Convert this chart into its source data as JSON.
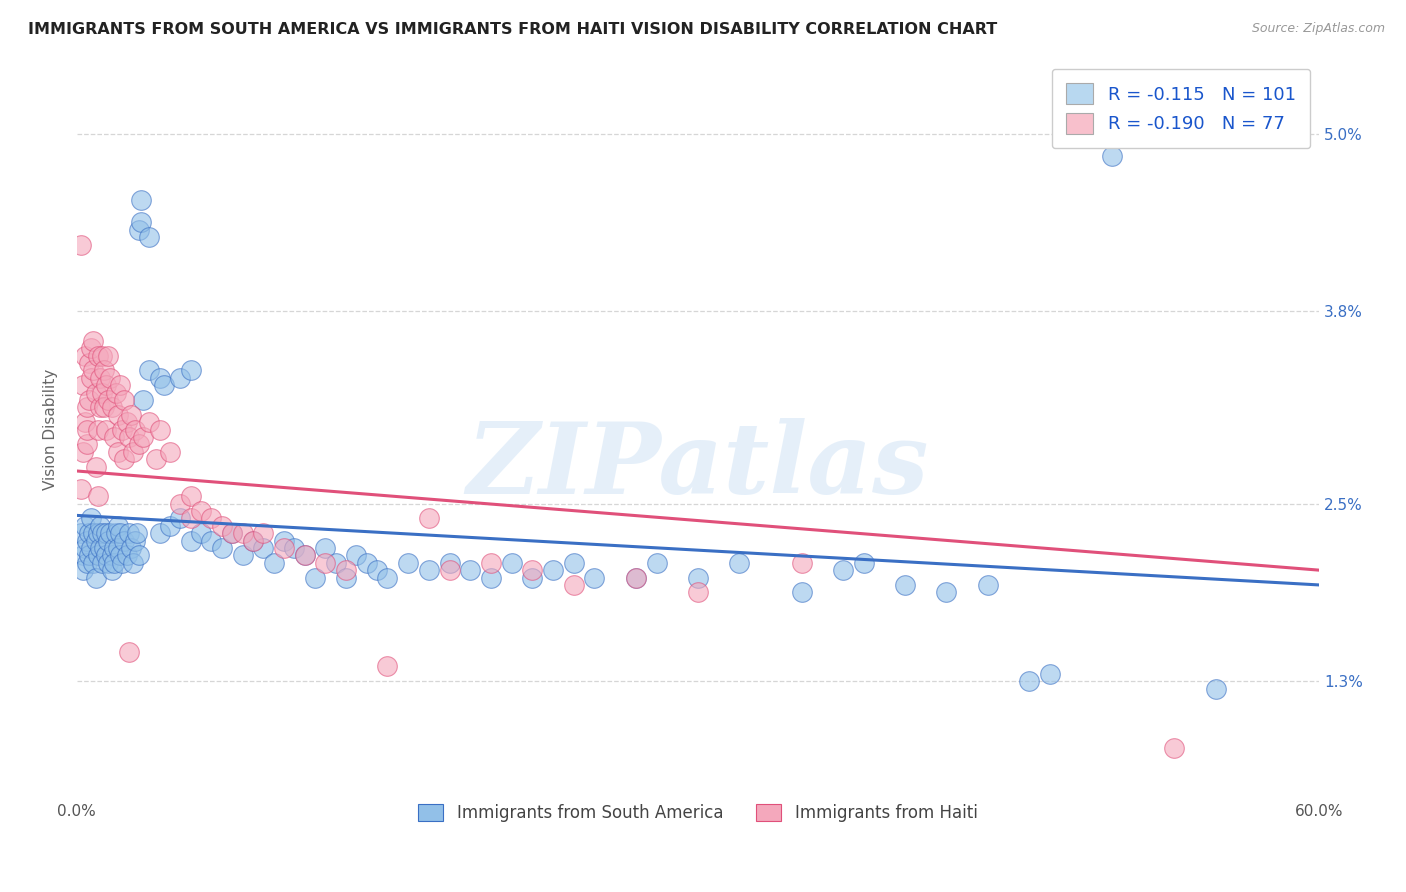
{
  "title": "IMMIGRANTS FROM SOUTH AMERICA VS IMMIGRANTS FROM HAITI VISION DISABILITY CORRELATION CHART",
  "source": "Source: ZipAtlas.com",
  "ylabel_label": "Vision Disability",
  "xlim": [
    0.0,
    60.0
  ],
  "ylim": [
    0.5,
    5.5
  ],
  "ytick_vals": [
    1.3,
    2.5,
    3.8,
    5.0
  ],
  "legend_bottom": [
    "Immigrants from South America",
    "Immigrants from Haiti"
  ],
  "color_blue": "#92c0e8",
  "color_pink": "#f4a8bc",
  "line_blue": "#3a6fc4",
  "line_pink": "#e0507a",
  "legend_blue_face": "#b8d8f0",
  "legend_pink_face": "#f8c0cc",
  "watermark": "ZIPatlas",
  "r_blue": -0.115,
  "n_blue": 101,
  "r_pink": -0.19,
  "n_pink": 77,
  "scatter_south_america": [
    [
      0.2,
      2.3
    ],
    [
      0.3,
      2.15
    ],
    [
      0.3,
      2.05
    ],
    [
      0.4,
      2.2
    ],
    [
      0.4,
      2.35
    ],
    [
      0.5,
      2.1
    ],
    [
      0.5,
      2.25
    ],
    [
      0.6,
      2.3
    ],
    [
      0.6,
      2.15
    ],
    [
      0.7,
      2.4
    ],
    [
      0.7,
      2.2
    ],
    [
      0.8,
      2.3
    ],
    [
      0.8,
      2.1
    ],
    [
      0.9,
      2.25
    ],
    [
      0.9,
      2.0
    ],
    [
      1.0,
      2.3
    ],
    [
      1.0,
      2.15
    ],
    [
      1.1,
      2.2
    ],
    [
      1.1,
      2.35
    ],
    [
      1.2,
      2.1
    ],
    [
      1.2,
      2.3
    ],
    [
      1.3,
      2.2
    ],
    [
      1.4,
      2.15
    ],
    [
      1.4,
      2.3
    ],
    [
      1.5,
      2.1
    ],
    [
      1.5,
      2.25
    ],
    [
      1.6,
      2.3
    ],
    [
      1.7,
      2.15
    ],
    [
      1.7,
      2.05
    ],
    [
      1.8,
      2.2
    ],
    [
      1.8,
      2.1
    ],
    [
      1.9,
      2.3
    ],
    [
      2.0,
      2.2
    ],
    [
      2.0,
      2.35
    ],
    [
      2.1,
      2.15
    ],
    [
      2.1,
      2.3
    ],
    [
      2.2,
      2.1
    ],
    [
      2.3,
      2.25
    ],
    [
      2.4,
      2.15
    ],
    [
      2.5,
      2.3
    ],
    [
      2.6,
      2.2
    ],
    [
      2.7,
      2.1
    ],
    [
      2.8,
      2.25
    ],
    [
      2.9,
      2.3
    ],
    [
      3.0,
      2.15
    ],
    [
      3.0,
      4.35
    ],
    [
      3.1,
      4.4
    ],
    [
      3.1,
      4.55
    ],
    [
      3.5,
      4.3
    ],
    [
      3.2,
      3.2
    ],
    [
      3.5,
      3.4
    ],
    [
      4.0,
      3.35
    ],
    [
      4.2,
      3.3
    ],
    [
      4.0,
      2.3
    ],
    [
      4.5,
      2.35
    ],
    [
      5.0,
      2.4
    ],
    [
      5.0,
      3.35
    ],
    [
      5.5,
      3.4
    ],
    [
      5.5,
      2.25
    ],
    [
      6.0,
      2.3
    ],
    [
      6.5,
      2.25
    ],
    [
      7.0,
      2.2
    ],
    [
      7.5,
      2.3
    ],
    [
      8.0,
      2.15
    ],
    [
      8.5,
      2.25
    ],
    [
      9.0,
      2.2
    ],
    [
      9.5,
      2.1
    ],
    [
      10.0,
      2.25
    ],
    [
      10.5,
      2.2
    ],
    [
      11.0,
      2.15
    ],
    [
      11.5,
      2.0
    ],
    [
      12.0,
      2.2
    ],
    [
      12.5,
      2.1
    ],
    [
      13.0,
      2.0
    ],
    [
      13.5,
      2.15
    ],
    [
      14.0,
      2.1
    ],
    [
      14.5,
      2.05
    ],
    [
      15.0,
      2.0
    ],
    [
      16.0,
      2.1
    ],
    [
      17.0,
      2.05
    ],
    [
      18.0,
      2.1
    ],
    [
      19.0,
      2.05
    ],
    [
      20.0,
      2.0
    ],
    [
      21.0,
      2.1
    ],
    [
      22.0,
      2.0
    ],
    [
      23.0,
      2.05
    ],
    [
      24.0,
      2.1
    ],
    [
      25.0,
      2.0
    ],
    [
      27.0,
      2.0
    ],
    [
      28.0,
      2.1
    ],
    [
      30.0,
      2.0
    ],
    [
      32.0,
      2.1
    ],
    [
      35.0,
      1.9
    ],
    [
      37.0,
      2.05
    ],
    [
      38.0,
      2.1
    ],
    [
      40.0,
      1.95
    ],
    [
      42.0,
      1.9
    ],
    [
      44.0,
      1.95
    ],
    [
      46.0,
      1.3
    ],
    [
      47.0,
      1.35
    ],
    [
      50.0,
      4.85
    ],
    [
      55.0,
      1.25
    ]
  ],
  "scatter_haiti": [
    [
      0.2,
      2.6
    ],
    [
      0.2,
      4.25
    ],
    [
      0.3,
      2.85
    ],
    [
      0.3,
      3.3
    ],
    [
      0.4,
      3.05
    ],
    [
      0.4,
      3.5
    ],
    [
      0.5,
      3.15
    ],
    [
      0.5,
      2.9
    ],
    [
      0.5,
      3.0
    ],
    [
      0.6,
      3.45
    ],
    [
      0.6,
      3.2
    ],
    [
      0.7,
      3.55
    ],
    [
      0.7,
      3.35
    ],
    [
      0.8,
      3.4
    ],
    [
      0.8,
      3.6
    ],
    [
      0.9,
      3.25
    ],
    [
      0.9,
      2.75
    ],
    [
      1.0,
      3.5
    ],
    [
      1.0,
      3.0
    ],
    [
      1.0,
      2.55
    ],
    [
      1.1,
      3.35
    ],
    [
      1.1,
      3.15
    ],
    [
      1.2,
      3.5
    ],
    [
      1.2,
      3.25
    ],
    [
      1.3,
      3.4
    ],
    [
      1.3,
      3.15
    ],
    [
      1.4,
      3.3
    ],
    [
      1.4,
      3.0
    ],
    [
      1.5,
      3.5
    ],
    [
      1.5,
      3.2
    ],
    [
      1.6,
      3.35
    ],
    [
      1.7,
      3.15
    ],
    [
      1.8,
      2.95
    ],
    [
      1.9,
      3.25
    ],
    [
      2.0,
      3.1
    ],
    [
      2.0,
      2.85
    ],
    [
      2.1,
      3.3
    ],
    [
      2.2,
      3.0
    ],
    [
      2.3,
      3.2
    ],
    [
      2.3,
      2.8
    ],
    [
      2.4,
      3.05
    ],
    [
      2.5,
      2.95
    ],
    [
      2.5,
      1.5
    ],
    [
      2.6,
      3.1
    ],
    [
      2.7,
      2.85
    ],
    [
      2.8,
      3.0
    ],
    [
      3.0,
      2.9
    ],
    [
      3.2,
      2.95
    ],
    [
      3.5,
      3.05
    ],
    [
      3.8,
      2.8
    ],
    [
      4.0,
      3.0
    ],
    [
      4.5,
      2.85
    ],
    [
      5.0,
      2.5
    ],
    [
      5.5,
      2.4
    ],
    [
      5.5,
      2.55
    ],
    [
      6.0,
      2.45
    ],
    [
      6.5,
      2.4
    ],
    [
      7.0,
      2.35
    ],
    [
      7.5,
      2.3
    ],
    [
      8.0,
      2.3
    ],
    [
      8.5,
      2.25
    ],
    [
      9.0,
      2.3
    ],
    [
      10.0,
      2.2
    ],
    [
      11.0,
      2.15
    ],
    [
      12.0,
      2.1
    ],
    [
      13.0,
      2.05
    ],
    [
      15.0,
      1.4
    ],
    [
      17.0,
      2.4
    ],
    [
      18.0,
      2.05
    ],
    [
      20.0,
      2.1
    ],
    [
      22.0,
      2.05
    ],
    [
      24.0,
      1.95
    ],
    [
      27.0,
      2.0
    ],
    [
      30.0,
      1.9
    ],
    [
      35.0,
      2.1
    ],
    [
      53.0,
      0.85
    ]
  ],
  "reg_blue_x0": 0.0,
  "reg_blue_y0": 2.42,
  "reg_blue_x1": 60.0,
  "reg_blue_y1": 1.95,
  "reg_pink_x0": 0.0,
  "reg_pink_y0": 2.72,
  "reg_pink_x1": 60.0,
  "reg_pink_y1": 2.05
}
